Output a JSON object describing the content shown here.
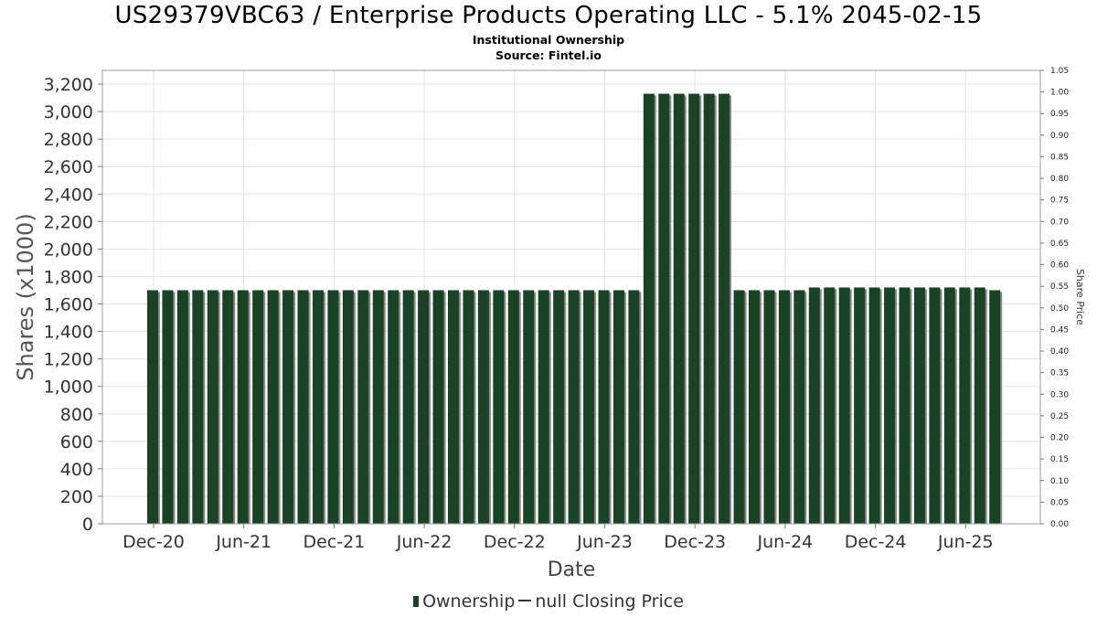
{
  "chart_data": {
    "type": "bar",
    "title": "US29379VBC63 / Enterprise Products Operating LLC - 5.1% 2045-02-15",
    "subtitle": "Institutional Ownership",
    "source": "Source: Fintel.io",
    "xlabel": "Date",
    "ylabel": "Shares (x1000)",
    "y2label": "Share Price",
    "ylim": [
      0,
      3300
    ],
    "y2lim": [
      0,
      1.05
    ],
    "y_ticks": [
      "0",
      "200",
      "400",
      "600",
      "800",
      "1,000",
      "1,200",
      "1,400",
      "1,600",
      "1,800",
      "2,000",
      "2,200",
      "2,400",
      "2,600",
      "2,800",
      "3,000",
      "3,200"
    ],
    "y2_ticks": [
      "0.00",
      "0.05",
      "0.10",
      "0.15",
      "0.20",
      "0.25",
      "0.30",
      "0.35",
      "0.40",
      "0.45",
      "0.50",
      "0.55",
      "0.60",
      "0.65",
      "0.70",
      "0.75",
      "0.80",
      "0.85",
      "0.90",
      "0.95",
      "1.00",
      "1.05"
    ],
    "x_ticks": [
      "Dec-20",
      "Jun-21",
      "Dec-21",
      "Jun-22",
      "Dec-22",
      "Jun-23",
      "Dec-23",
      "Jun-24",
      "Dec-24",
      "Jun-25"
    ],
    "grid": true,
    "legend_position": "bottom",
    "series": [
      {
        "name": "Ownership",
        "color": "#1a4325",
        "values": [
          1700,
          1700,
          1700,
          1700,
          1700,
          1700,
          1700,
          1700,
          1700,
          1700,
          1700,
          1700,
          1700,
          1700,
          1700,
          1700,
          1700,
          1700,
          1700,
          1700,
          1700,
          1700,
          1700,
          1700,
          1700,
          1700,
          1700,
          1700,
          1700,
          1700,
          1700,
          1700,
          1700,
          3130,
          3130,
          3130,
          3130,
          3130,
          3130,
          1700,
          1700,
          1700,
          1700,
          1700,
          1720,
          1720,
          1720,
          1720,
          1720,
          1720,
          1720,
          1720,
          1720,
          1720,
          1720,
          1720,
          1700
        ]
      }
    ],
    "legend": {
      "ownership_label": "Ownership",
      "price_label": "null Closing Price"
    }
  }
}
